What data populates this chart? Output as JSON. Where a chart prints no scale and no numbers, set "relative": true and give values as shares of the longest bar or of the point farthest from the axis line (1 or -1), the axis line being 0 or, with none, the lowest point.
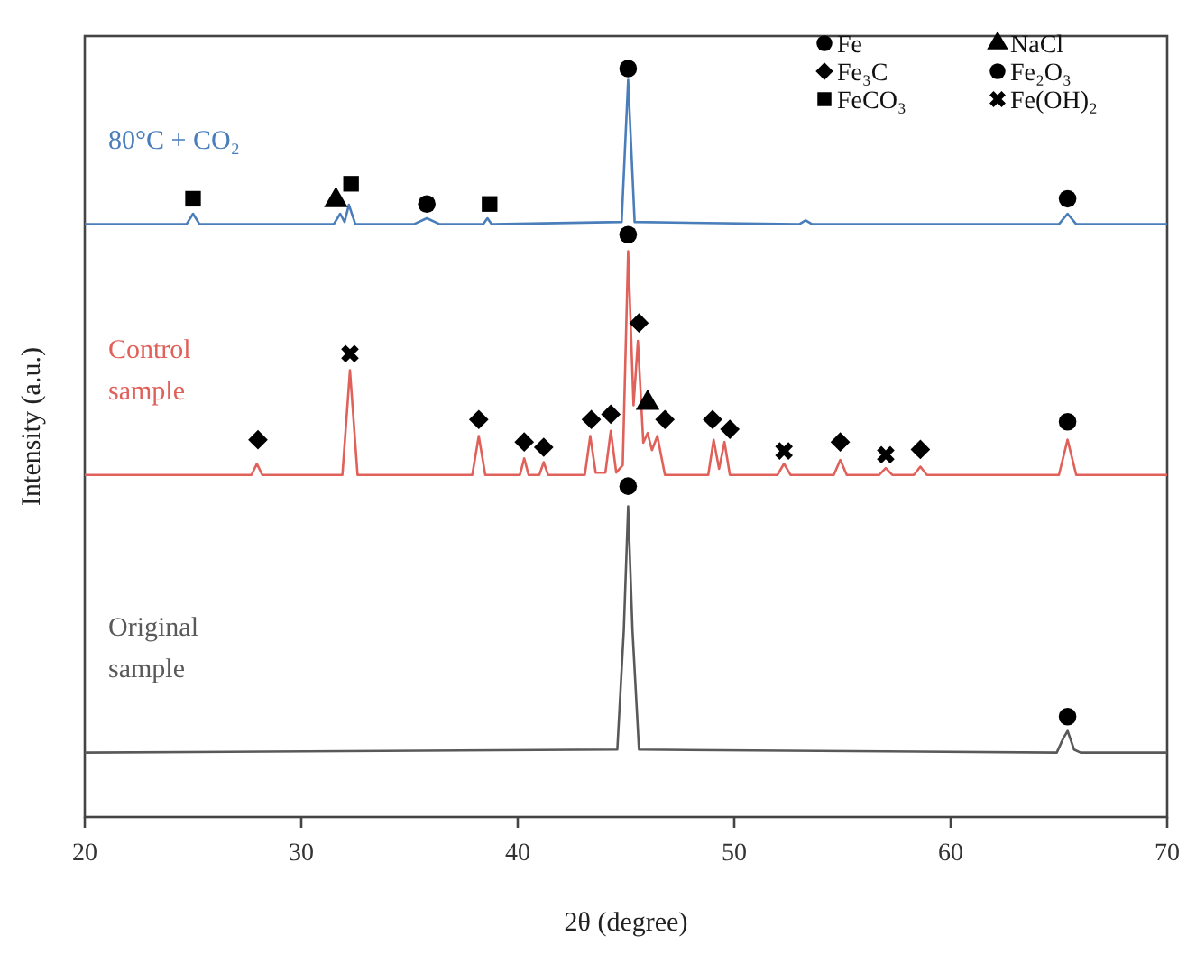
{
  "chart_data": {
    "type": "line",
    "xlabel": "2θ (degree)",
    "ylabel": "Intensity (a.u.)",
    "relative": true,
    "xlim": [
      20,
      70
    ],
    "xticks": [
      20,
      30,
      40,
      50,
      60,
      70
    ],
    "legend": "top right",
    "grid": false,
    "tick_labels": "x",
    "series": [
      {
        "name": "80°C + CO₂",
        "color": "#4a7ebb",
        "marker": "none",
        "x": [
          20,
          24.7,
          25.0,
          25.3,
          31.5,
          31.8,
          32.0,
          32.2,
          32.5,
          35.2,
          35.8,
          36.4,
          38.4,
          38.6,
          38.8,
          44.8,
          45.1,
          45.4,
          53.0,
          53.3,
          53.6,
          65.0,
          65.4,
          65.8,
          70
        ],
        "values": [
          0.792,
          0.792,
          0.806,
          0.792,
          0.792,
          0.806,
          0.795,
          0.818,
          0.792,
          0.792,
          0.8,
          0.792,
          0.792,
          0.8,
          0.792,
          0.795,
          0.985,
          0.795,
          0.792,
          0.797,
          0.792,
          0.792,
          0.806,
          0.792,
          0.792
        ]
      },
      {
        "name": "Control sample",
        "color": "#e0605a",
        "marker": "none",
        "x": [
          20,
          27.7,
          27.95,
          28.2,
          31.9,
          32.25,
          32.6,
          37.9,
          38.2,
          38.5,
          40.1,
          40.3,
          40.5,
          41.0,
          41.2,
          41.4,
          43.1,
          43.35,
          43.6,
          44.05,
          44.3,
          44.55,
          44.85,
          45.1,
          45.35,
          45.55,
          45.8,
          46.0,
          46.2,
          46.45,
          46.8,
          48.8,
          49.05,
          49.3,
          49.55,
          49.8,
          52.0,
          52.3,
          52.6,
          54.6,
          54.9,
          55.2,
          56.7,
          57.0,
          57.3,
          58.3,
          58.6,
          58.9,
          65.0,
          65.4,
          65.8,
          70
        ],
        "values": [
          0.457,
          0.457,
          0.472,
          0.457,
          0.457,
          0.597,
          0.457,
          0.457,
          0.509,
          0.457,
          0.457,
          0.479,
          0.457,
          0.457,
          0.474,
          0.457,
          0.457,
          0.509,
          0.46,
          0.46,
          0.516,
          0.46,
          0.47,
          0.756,
          0.55,
          0.636,
          0.5,
          0.513,
          0.49,
          0.509,
          0.457,
          0.457,
          0.504,
          0.465,
          0.501,
          0.457,
          0.457,
          0.472,
          0.457,
          0.457,
          0.477,
          0.457,
          0.457,
          0.466,
          0.457,
          0.457,
          0.468,
          0.457,
          0.457,
          0.504,
          0.457,
          0.457
        ]
      },
      {
        "name": "Original sample",
        "color": "#595959",
        "marker": "none",
        "x": [
          20,
          44.6,
          44.9,
          45.1,
          45.3,
          45.6,
          64.9,
          65.2,
          65.4,
          65.7,
          66.0,
          70
        ],
        "values": [
          0.086,
          0.09,
          0.25,
          0.415,
          0.25,
          0.09,
          0.086,
          0.105,
          0.115,
          0.09,
          0.086,
          0.086
        ]
      },
      {
        "name": "Fe",
        "type": "scatter",
        "color": "#000000",
        "marker": "circle",
        "x": [
          45.1,
          65.4,
          45.1,
          65.4,
          45.1,
          65.4
        ],
        "values": [
          1.0,
          0.826,
          0.778,
          0.528,
          0.442,
          0.134
        ]
      },
      {
        "name": "Fe₃C",
        "type": "scatter",
        "color": "#000000",
        "marker": "diamond",
        "x": [
          28.0,
          38.2,
          40.3,
          41.2,
          43.4,
          44.3,
          45.6,
          46.8,
          49.0,
          49.8,
          54.9,
          58.6
        ],
        "values": [
          0.504,
          0.531,
          0.501,
          0.494,
          0.531,
          0.538,
          0.66,
          0.531,
          0.531,
          0.518,
          0.501,
          0.491
        ]
      },
      {
        "name": "FeCO₃",
        "type": "scatter",
        "color": "#000000",
        "marker": "square",
        "x": [
          25.0,
          32.3,
          38.7
        ],
        "values": [
          0.826,
          0.846,
          0.819
        ]
      },
      {
        "name": "NaCl",
        "type": "scatter",
        "color": "#000000",
        "marker": "triangle",
        "x": [
          31.6,
          46.0
        ],
        "values": [
          0.824,
          0.553
        ]
      },
      {
        "name": "Fe₂O₃",
        "type": "scatter",
        "color": "#000000",
        "marker": "circle",
        "x": [
          35.8
        ],
        "values": [
          0.819
        ]
      },
      {
        "name": "Fe(OH)₂",
        "type": "scatter",
        "color": "#000000",
        "marker": "cross",
        "x": [
          32.25,
          52.3,
          57.0
        ],
        "values": [
          0.619,
          0.489,
          0.484
        ]
      }
    ]
  }
}
